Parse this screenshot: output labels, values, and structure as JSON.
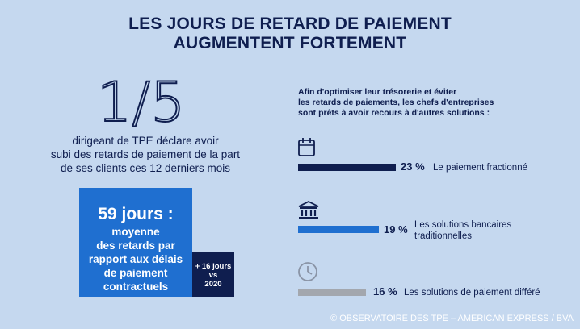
{
  "title": {
    "line1": "LES JOURS DE RETARD DE PAIEMENT",
    "line2": "AUGMENTENT FORTEMENT"
  },
  "left": {
    "big_stat": "1/5",
    "desc_line1": "dirigeant de TPE déclare avoir",
    "desc_line2": "subi des retards de paiement de la part",
    "desc_line3": "de ses clients ces 12 derniers mois",
    "box_days": "59 jours :",
    "box_sub1": "moyenne",
    "box_sub2": "des retards par",
    "box_sub3": "rapport aux délais",
    "box_sub4": "de paiement",
    "box_sub5": "contractuels",
    "side_line1": "+ 16 jours",
    "side_line2": "vs",
    "side_line3": "2020"
  },
  "right": {
    "intro_line1": "Afin d'optimiser leur trésorerie et éviter",
    "intro_line2": "les retards de paiements, les chefs d'entreprises",
    "intro_line3": "sont prêts à avoir recours à d'autres solutions :"
  },
  "chart_data": {
    "type": "bar",
    "orientation": "horizontal",
    "unit": "%",
    "series": [
      {
        "label": "Le paiement fractionné",
        "value": 23,
        "value_text": "23 %",
        "color": "#0f1e4f",
        "icon": "calendar-icon"
      },
      {
        "label_line1": "Les solutions bancaires",
        "label_line2": "traditionnelles",
        "value": 19,
        "value_text": "19 %",
        "color": "#1f6fd0",
        "icon": "bank-icon"
      },
      {
        "label": "Les solutions de paiement différé",
        "value": 16,
        "value_text": "16 %",
        "color": "#a3a7ae",
        "icon": "clock-icon"
      }
    ]
  },
  "source": "© OBSERVATOIRE DES TPE – AMERICAN EXPRESS / BVA"
}
